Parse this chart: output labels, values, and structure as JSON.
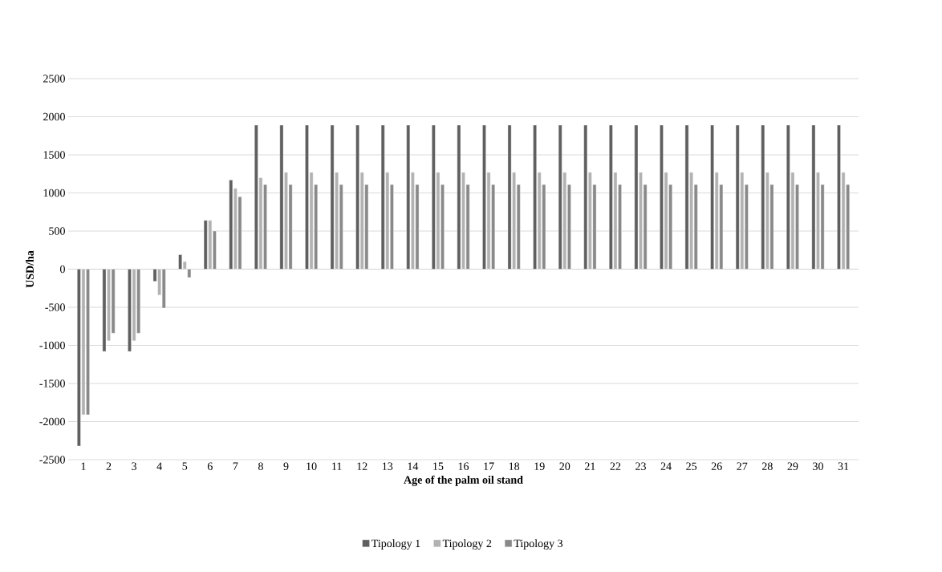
{
  "chart_data": {
    "type": "bar",
    "xlabel": "Age of the palm oil stand",
    "ylabel": "USD/ha",
    "categories": [
      "1",
      "2",
      "3",
      "4",
      "5",
      "6",
      "7",
      "8",
      "9",
      "10",
      "11",
      "12",
      "13",
      "14",
      "15",
      "16",
      "17",
      "18",
      "19",
      "20",
      "21",
      "22",
      "23",
      "24",
      "25",
      "26",
      "27",
      "28",
      "29",
      "30",
      "31"
    ],
    "series": [
      {
        "name": "Tipology 1",
        "color": "#5f5f5f",
        "values": [
          -2320,
          -1080,
          -1080,
          -160,
          190,
          640,
          1170,
          1890,
          1890,
          1890,
          1890,
          1890,
          1890,
          1890,
          1890,
          1890,
          1890,
          1890,
          1890,
          1890,
          1890,
          1890,
          1890,
          1890,
          1890,
          1890,
          1890,
          1890,
          1890,
          1890,
          1890
        ]
      },
      {
        "name": "Tipology 2",
        "color": "#b2b2b2",
        "values": [
          -1910,
          -940,
          -940,
          -340,
          100,
          640,
          1060,
          1200,
          1270,
          1270,
          1270,
          1270,
          1270,
          1270,
          1270,
          1270,
          1270,
          1270,
          1270,
          1270,
          1270,
          1270,
          1270,
          1270,
          1270,
          1270,
          1270,
          1270,
          1270,
          1270,
          1270
        ]
      },
      {
        "name": "Tipology 3",
        "color": "#898989",
        "values": [
          -1910,
          -840,
          -840,
          -510,
          -110,
          500,
          950,
          1110,
          1110,
          1110,
          1110,
          1110,
          1110,
          1110,
          1110,
          1110,
          1110,
          1110,
          1110,
          1110,
          1110,
          1110,
          1110,
          1110,
          1110,
          1110,
          1110,
          1110,
          1110,
          1110,
          1110
        ]
      }
    ],
    "ylim": [
      -2500,
      2500
    ],
    "yticks": [
      -2500,
      -2000,
      -1500,
      -1000,
      -500,
      0,
      500,
      1000,
      1500,
      2000,
      2500
    ],
    "grid": "y",
    "legend": "bottom"
  }
}
